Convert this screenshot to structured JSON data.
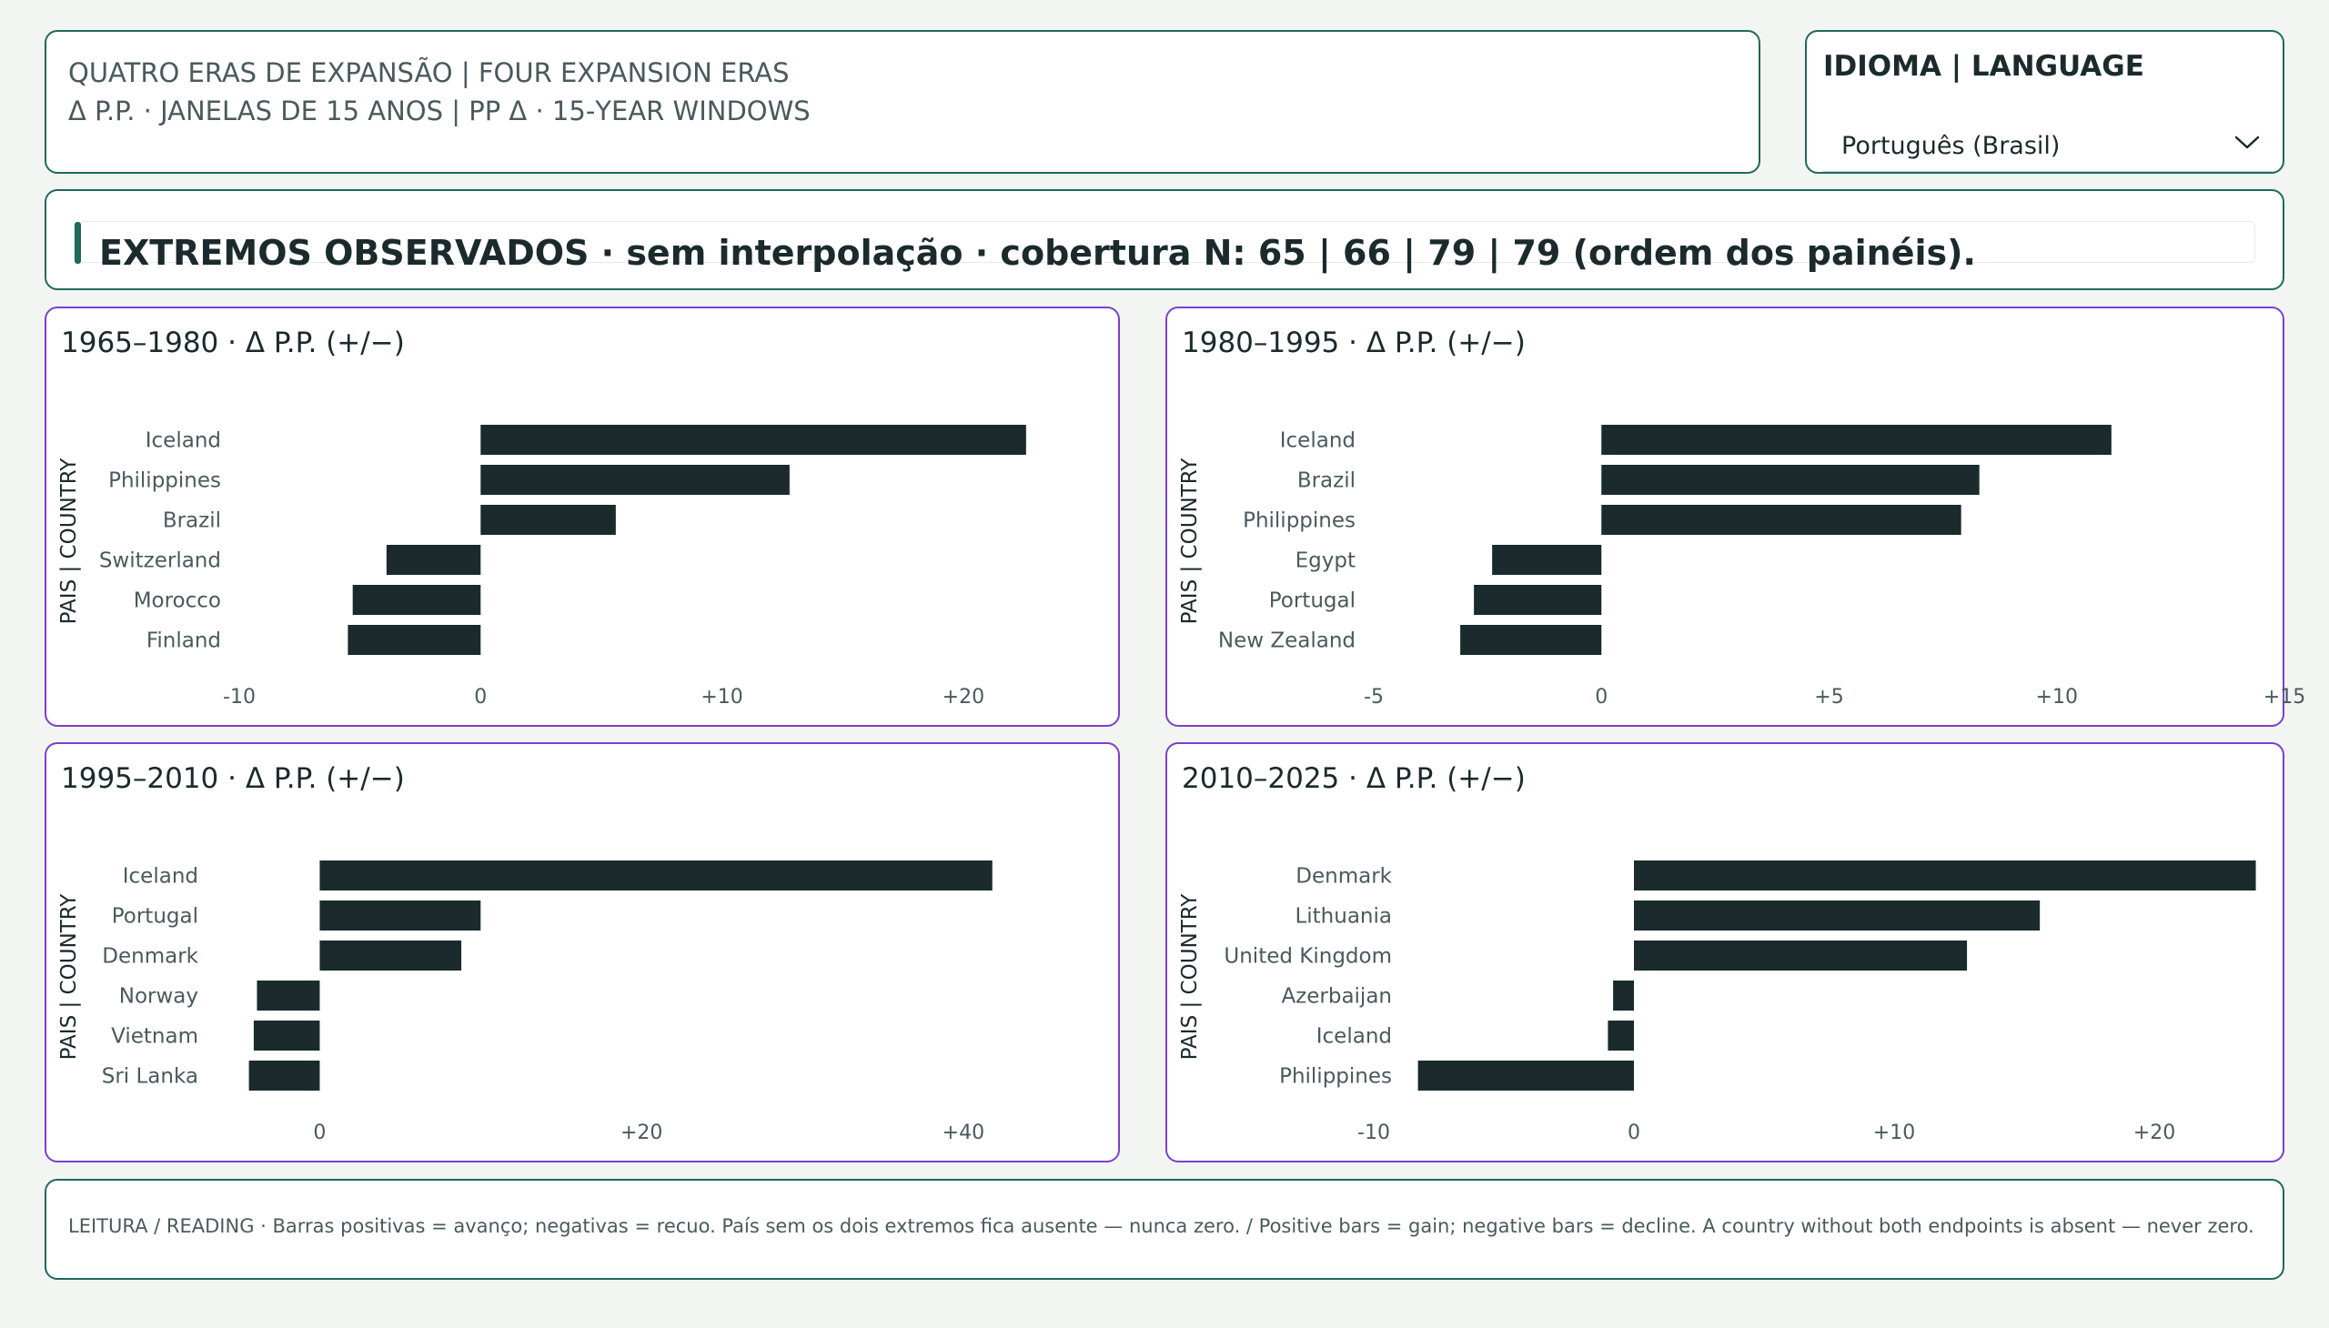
{
  "header": {
    "line1": "QUATRO ERAS DE EXPANSÃO | FOUR EXPANSION ERAS",
    "line2": "Δ P.P. · JANELAS DE 15 ANOS | PP Δ · 15-YEAR WINDOWS"
  },
  "language": {
    "label": "IDIOMA | LANGUAGE",
    "selected": "Português (Brasil)",
    "icon": "chevron-down-icon"
  },
  "banner": {
    "text": "EXTREMOS OBSERVADOS · sem interpolação · cobertura N: 65 | 66 | 79 | 79 (ordem dos painéis)."
  },
  "footer": {
    "text": "LEITURA / READING · Barras positivas = avanço; negativas = recuo. País sem os dois extremos fica ausente — nunca zero. / Positive bars = gain; negative bars = decline. A country without both endpoints is absent — never zero."
  },
  "colors": {
    "bar": "#1b2a2c",
    "accent": "#1e6a5c",
    "panel_border": "#7b3fd0"
  },
  "chart_data": [
    {
      "type": "bar",
      "orientation": "horizontal",
      "title": "1965–1980 · Δ P.P. (+/−)",
      "ylabel": "PAIS | COUNTRY",
      "categories": [
        "Iceland",
        "Philippines",
        "Brazil",
        "Switzerland",
        "Morocco",
        "Finland"
      ],
      "values": [
        22.6,
        12.8,
        5.6,
        -3.9,
        -5.3,
        -5.5
      ],
      "xlim": [
        -10,
        24
      ],
      "ticks": [
        -10,
        0,
        10,
        20
      ],
      "tick_labels": [
        "-10",
        "0",
        "+10",
        "+20"
      ]
    },
    {
      "type": "bar",
      "orientation": "horizontal",
      "title": "1980–1995 · Δ P.P. (+/−)",
      "ylabel": "PAIS | COUNTRY",
      "categories": [
        "Iceland",
        "Brazil",
        "Philippines",
        "Egypt",
        "Portugal",
        "New Zealand"
      ],
      "values": [
        11.2,
        8.3,
        7.9,
        -2.4,
        -2.8,
        -3.1
      ],
      "xlim": [
        -5,
        15
      ],
      "ticks": [
        -5,
        0,
        5,
        10,
        15
      ],
      "tick_labels": [
        "-5",
        "0",
        "+5",
        "+10",
        "+15"
      ]
    },
    {
      "type": "bar",
      "orientation": "horizontal",
      "title": "1995–2010 · Δ P.P. (+/−)",
      "ylabel": "PAIS | COUNTRY",
      "categories": [
        "Iceland",
        "Portugal",
        "Denmark",
        "Norway",
        "Vietnam",
        "Sri Lanka"
      ],
      "values": [
        41.8,
        10.0,
        8.8,
        -3.9,
        -4.1,
        -4.4
      ],
      "xlim": [
        -5,
        46
      ],
      "ticks": [
        0,
        20,
        40
      ],
      "tick_labels": [
        "0",
        "+20",
        "+40"
      ]
    },
    {
      "type": "bar",
      "orientation": "horizontal",
      "title": "2010–2025 · Δ P.P. (+/−)",
      "ylabel": "PAIS | COUNTRY",
      "categories": [
        "Denmark",
        "Lithuania",
        "United Kingdom",
        "Azerbaijan",
        "Iceland",
        "Philippines"
      ],
      "values": [
        23.9,
        15.6,
        12.8,
        -0.8,
        -1.0,
        -8.3
      ],
      "xlim": [
        -10,
        25
      ],
      "ticks": [
        -10,
        0,
        10,
        20
      ],
      "tick_labels": [
        "-10",
        "0",
        "+10",
        "+20"
      ]
    }
  ]
}
